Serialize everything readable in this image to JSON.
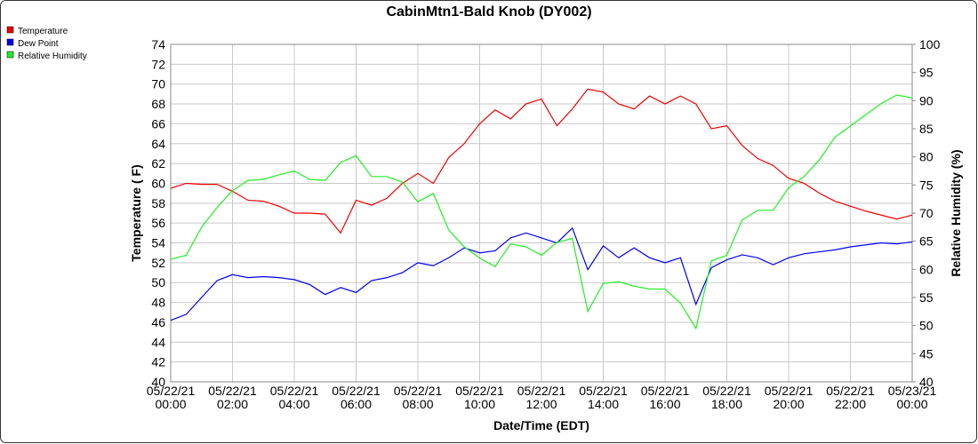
{
  "chart_data": {
    "type": "line",
    "title": "CabinMtn1-Bald Knob (DY002)",
    "x_label": "Date/Time (EDT)",
    "y_label": "Temperature ( F)",
    "y2_label": "Relative Humidity (%)",
    "legend": "top-left",
    "grid": true,
    "xlim": [
      "05/22/21 00:00",
      "05/23/21 00:00"
    ],
    "xticks": [
      "05/22/21 00:00",
      "05/22/21 02:00",
      "05/22/21 04:00",
      "05/22/21 06:00",
      "05/22/21 08:00",
      "05/22/21 10:00",
      "05/22/21 12:00",
      "05/22/21 14:00",
      "05/22/21 16:00",
      "05/22/21 18:00",
      "05/22/21 20:00",
      "05/22/21 22:00",
      "05/23/21 00:00"
    ],
    "ylim": [
      40,
      74
    ],
    "yticks": [
      40,
      42,
      44,
      46,
      48,
      50,
      52,
      54,
      56,
      58,
      60,
      62,
      64,
      66,
      68,
      70,
      72,
      74
    ],
    "y2lim": [
      40,
      100
    ],
    "y2ticks": [
      40,
      45,
      50,
      55,
      60,
      65,
      70,
      75,
      80,
      85,
      90,
      95,
      100
    ],
    "x": [
      "05/22/21 00:00",
      "05/22/21 00:30",
      "05/22/21 01:00",
      "05/22/21 01:30",
      "05/22/21 02:00",
      "05/22/21 02:30",
      "05/22/21 03:00",
      "05/22/21 03:30",
      "05/22/21 04:00",
      "05/22/21 04:30",
      "05/22/21 05:00",
      "05/22/21 05:30",
      "05/22/21 06:00",
      "05/22/21 06:30",
      "05/22/21 07:00",
      "05/22/21 07:30",
      "05/22/21 08:00",
      "05/22/21 08:30",
      "05/22/21 09:00",
      "05/22/21 09:30",
      "05/22/21 10:00",
      "05/22/21 10:30",
      "05/22/21 11:00",
      "05/22/21 11:30",
      "05/22/21 12:00",
      "05/22/21 12:30",
      "05/22/21 13:00",
      "05/22/21 13:30",
      "05/22/21 14:00",
      "05/22/21 14:30",
      "05/22/21 15:00",
      "05/22/21 15:30",
      "05/22/21 16:00",
      "05/22/21 16:30",
      "05/22/21 17:00",
      "05/22/21 17:30",
      "05/22/21 18:00",
      "05/22/21 18:30",
      "05/22/21 19:00",
      "05/22/21 19:30",
      "05/22/21 20:00",
      "05/22/21 20:30",
      "05/22/21 21:00",
      "05/22/21 21:30",
      "05/22/21 22:00",
      "05/22/21 22:30",
      "05/22/21 23:00",
      "05/22/21 23:30",
      "05/23/21 00:00"
    ],
    "series": [
      {
        "name": "Temperature",
        "color": "#ee0000",
        "axis": "y",
        "values": [
          59.5,
          60.0,
          59.9,
          59.9,
          59.2,
          58.3,
          58.2,
          57.7,
          57.0,
          57.0,
          56.9,
          55.0,
          58.3,
          57.8,
          58.5,
          60.0,
          61.0,
          60.0,
          62.6,
          64.0,
          66.0,
          67.4,
          66.5,
          68.0,
          68.5,
          65.8,
          67.5,
          69.5,
          69.2,
          68.0,
          67.5,
          68.8,
          68.0,
          68.8,
          68.0,
          65.5,
          65.8,
          63.8,
          62.5,
          61.8,
          60.5,
          60.0,
          59.0,
          58.2,
          57.7,
          57.2,
          56.8,
          56.4,
          56.8
        ]
      },
      {
        "name": "Dew Point",
        "color": "#0000ee",
        "axis": "y",
        "values": [
          46.2,
          46.8,
          48.5,
          50.2,
          50.8,
          50.5,
          50.6,
          50.5,
          50.3,
          49.8,
          48.8,
          49.5,
          49.0,
          50.2,
          50.5,
          51.0,
          52.0,
          51.7,
          52.5,
          53.5,
          53.0,
          53.2,
          54.5,
          55.0,
          54.5,
          54.0,
          55.5,
          51.3,
          53.7,
          52.5,
          53.5,
          52.5,
          52.0,
          52.5,
          47.8,
          51.5,
          52.3,
          52.8,
          52.5,
          51.8,
          52.5,
          52.9,
          53.1,
          53.3,
          53.6,
          53.8,
          54.0,
          53.9,
          54.1
        ]
      },
      {
        "name": "Relative Humidity",
        "color": "#22ee22",
        "axis": "y2",
        "values": [
          61.8,
          62.5,
          67.5,
          71.0,
          74.0,
          75.8,
          76.0,
          76.8,
          77.5,
          76.0,
          75.8,
          79.0,
          80.2,
          76.5,
          76.5,
          75.5,
          72.0,
          73.5,
          67.0,
          64.0,
          62.0,
          60.5,
          64.5,
          64.0,
          62.5,
          64.8,
          65.5,
          52.5,
          57.5,
          57.8,
          57.0,
          56.5,
          56.5,
          54.0,
          49.5,
          61.5,
          62.5,
          68.8,
          70.5,
          70.5,
          74.5,
          76.5,
          79.5,
          83.5,
          85.5,
          87.5,
          89.5,
          91.0,
          90.5
        ]
      }
    ]
  }
}
